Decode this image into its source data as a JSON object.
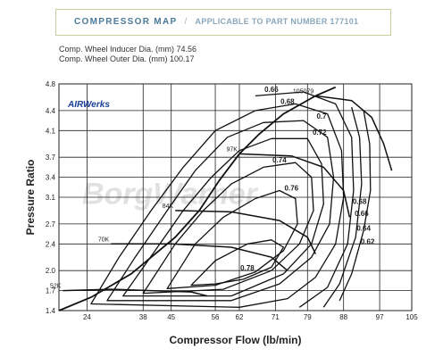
{
  "header": {
    "title": "COMPRESSOR MAP",
    "separator": "/",
    "subtitle": "APPLICABLE TO PART NUMBER 177101"
  },
  "specs": [
    "Comp. Wheel Inducer Dia. (mm) 74.56",
    "Comp. Wheel Outer Dia. (mm) 100.17"
  ],
  "colors": {
    "header_text": "#4a7a9a",
    "header_border": "#c9cf9a",
    "lines": "#111111",
    "logo": "#1a3f9a",
    "watermark": "#d5d5d5"
  },
  "logo_text": "AIRWerks",
  "watermark_text": "BorgWarner",
  "chart_data": {
    "type": "line",
    "xlabel": "Compressor Flow (lb/min)",
    "ylabel": "Pressure Ratio",
    "x_ticks": [
      24,
      38,
      45,
      56,
      62,
      71,
      79,
      88,
      97,
      105
    ],
    "y_ticks": [
      1.4,
      1.7,
      2.0,
      2.4,
      2.7,
      3.1,
      3.4,
      3.7,
      4.1,
      4.4,
      4.8
    ],
    "xlim": [
      17,
      105
    ],
    "ylim": [
      1.4,
      4.8
    ],
    "grid": true,
    "surge_line": [
      [
        17,
        1.4
      ],
      [
        25,
        1.6
      ],
      [
        35,
        1.95
      ],
      [
        46,
        2.5
      ],
      [
        52,
        2.9
      ],
      [
        57,
        3.35
      ],
      [
        62,
        3.75
      ],
      [
        67,
        4.05
      ],
      [
        73,
        4.35
      ],
      [
        81,
        4.62
      ],
      [
        86,
        4.75
      ]
    ],
    "speed_lines": [
      {
        "label": "52K",
        "points": [
          [
            18,
            1.7
          ],
          [
            30,
            1.72
          ],
          [
            40,
            1.7
          ],
          [
            50,
            1.68
          ],
          [
            54,
            1.62
          ]
        ]
      },
      {
        "label": "70K",
        "points": [
          [
            30,
            2.4
          ],
          [
            45,
            2.4
          ],
          [
            60,
            2.35
          ],
          [
            70,
            2.2
          ],
          [
            74,
            2.0
          ]
        ]
      },
      {
        "label": "84K",
        "points": [
          [
            46,
            2.9
          ],
          [
            60,
            2.88
          ],
          [
            72,
            2.75
          ],
          [
            79,
            2.5
          ],
          [
            81,
            2.25
          ]
        ]
      },
      {
        "label": "97K",
        "points": [
          [
            62,
            3.75
          ],
          [
            75,
            3.72
          ],
          [
            83,
            3.55
          ],
          [
            88,
            3.2
          ],
          [
            89.5,
            2.8
          ]
        ]
      },
      {
        "label": "105079",
        "points": [
          [
            81,
            4.62
          ],
          [
            90,
            4.55
          ],
          [
            95,
            4.3
          ],
          [
            98,
            3.9
          ],
          [
            100,
            3.5
          ]
        ]
      }
    ],
    "efficiency_islands": [
      {
        "label": "0.78",
        "points": [
          [
            50,
            1.78
          ],
          [
            56,
            2.15
          ],
          [
            64,
            2.4
          ],
          [
            70,
            2.46
          ],
          [
            73,
            2.35
          ],
          [
            70,
            2.05
          ],
          [
            63,
            1.87
          ],
          [
            56,
            1.8
          ]
        ]
      },
      {
        "label": "0.76",
        "points": [
          [
            44,
            1.73
          ],
          [
            51,
            2.4
          ],
          [
            58,
            2.8
          ],
          [
            66,
            3.08
          ],
          [
            72,
            3.2
          ],
          [
            76,
            3.08
          ],
          [
            76.5,
            2.7
          ],
          [
            73,
            2.3
          ],
          [
            66,
            1.98
          ],
          [
            56,
            1.78
          ]
        ]
      },
      {
        "label": "0.74",
        "points": [
          [
            38,
            1.66
          ],
          [
            46,
            2.4
          ],
          [
            53,
            2.9
          ],
          [
            60,
            3.3
          ],
          [
            68,
            3.55
          ],
          [
            76,
            3.62
          ],
          [
            80,
            3.4
          ],
          [
            80.5,
            2.9
          ],
          [
            77,
            2.4
          ],
          [
            70,
            2.0
          ],
          [
            58,
            1.72
          ]
        ]
      },
      {
        "label": "0.72",
        "points": [
          [
            33,
            1.62
          ],
          [
            41,
            2.3
          ],
          [
            48,
            2.9
          ],
          [
            55,
            3.4
          ],
          [
            62,
            3.8
          ],
          [
            70,
            3.98
          ],
          [
            79,
            3.98
          ],
          [
            82.5,
            3.6
          ],
          [
            83,
            3.0
          ],
          [
            80,
            2.4
          ],
          [
            73,
            1.95
          ],
          [
            60,
            1.62
          ]
        ]
      },
      {
        "label": "0.7",
        "points": [
          [
            29,
            1.55
          ],
          [
            36,
            2.2
          ],
          [
            44,
            2.9
          ],
          [
            51,
            3.5
          ],
          [
            59,
            4.0
          ],
          [
            68,
            4.22
          ],
          [
            78,
            4.25
          ],
          [
            84,
            4.0
          ],
          [
            85.5,
            3.4
          ],
          [
            84.5,
            2.7
          ],
          [
            80,
            2.2
          ],
          [
            72,
            1.8
          ],
          [
            60,
            1.55
          ]
        ]
      },
      {
        "label": "0.68",
        "points": [
          [
            25,
            1.5
          ],
          [
            32,
            2.2
          ],
          [
            40,
            2.9
          ],
          [
            48,
            3.55
          ],
          [
            56,
            4.1
          ],
          [
            66,
            4.4
          ],
          [
            76,
            4.5
          ],
          [
            84,
            4.35
          ],
          [
            87.5,
            3.8
          ],
          [
            88,
            3.1
          ],
          [
            86,
            2.4
          ],
          [
            81,
            1.9
          ],
          [
            74,
            1.58
          ],
          [
            62,
            1.45
          ]
        ]
      },
      {
        "label": "0.66",
        "points": [
          [
            66,
            4.62
          ],
          [
            78,
            4.68
          ],
          [
            86,
            4.5
          ],
          [
            90,
            4.0
          ],
          [
            90.5,
            3.2
          ],
          [
            89,
            2.4
          ],
          [
            84,
            1.75
          ],
          [
            77,
            1.45
          ]
        ]
      },
      {
        "label": "0.64",
        "points": [
          [
            90,
            4.45
          ],
          [
            92,
            4.0
          ],
          [
            92.5,
            3.3
          ],
          [
            91,
            2.5
          ],
          [
            87,
            1.8
          ],
          [
            83,
            1.45
          ]
        ]
      },
      {
        "label": "0.62",
        "points": [
          [
            93,
            4.4
          ],
          [
            94.5,
            3.9
          ],
          [
            94.7,
            3.2
          ],
          [
            93,
            2.6
          ],
          [
            90,
            1.95
          ],
          [
            87,
            1.55
          ]
        ]
      }
    ]
  }
}
